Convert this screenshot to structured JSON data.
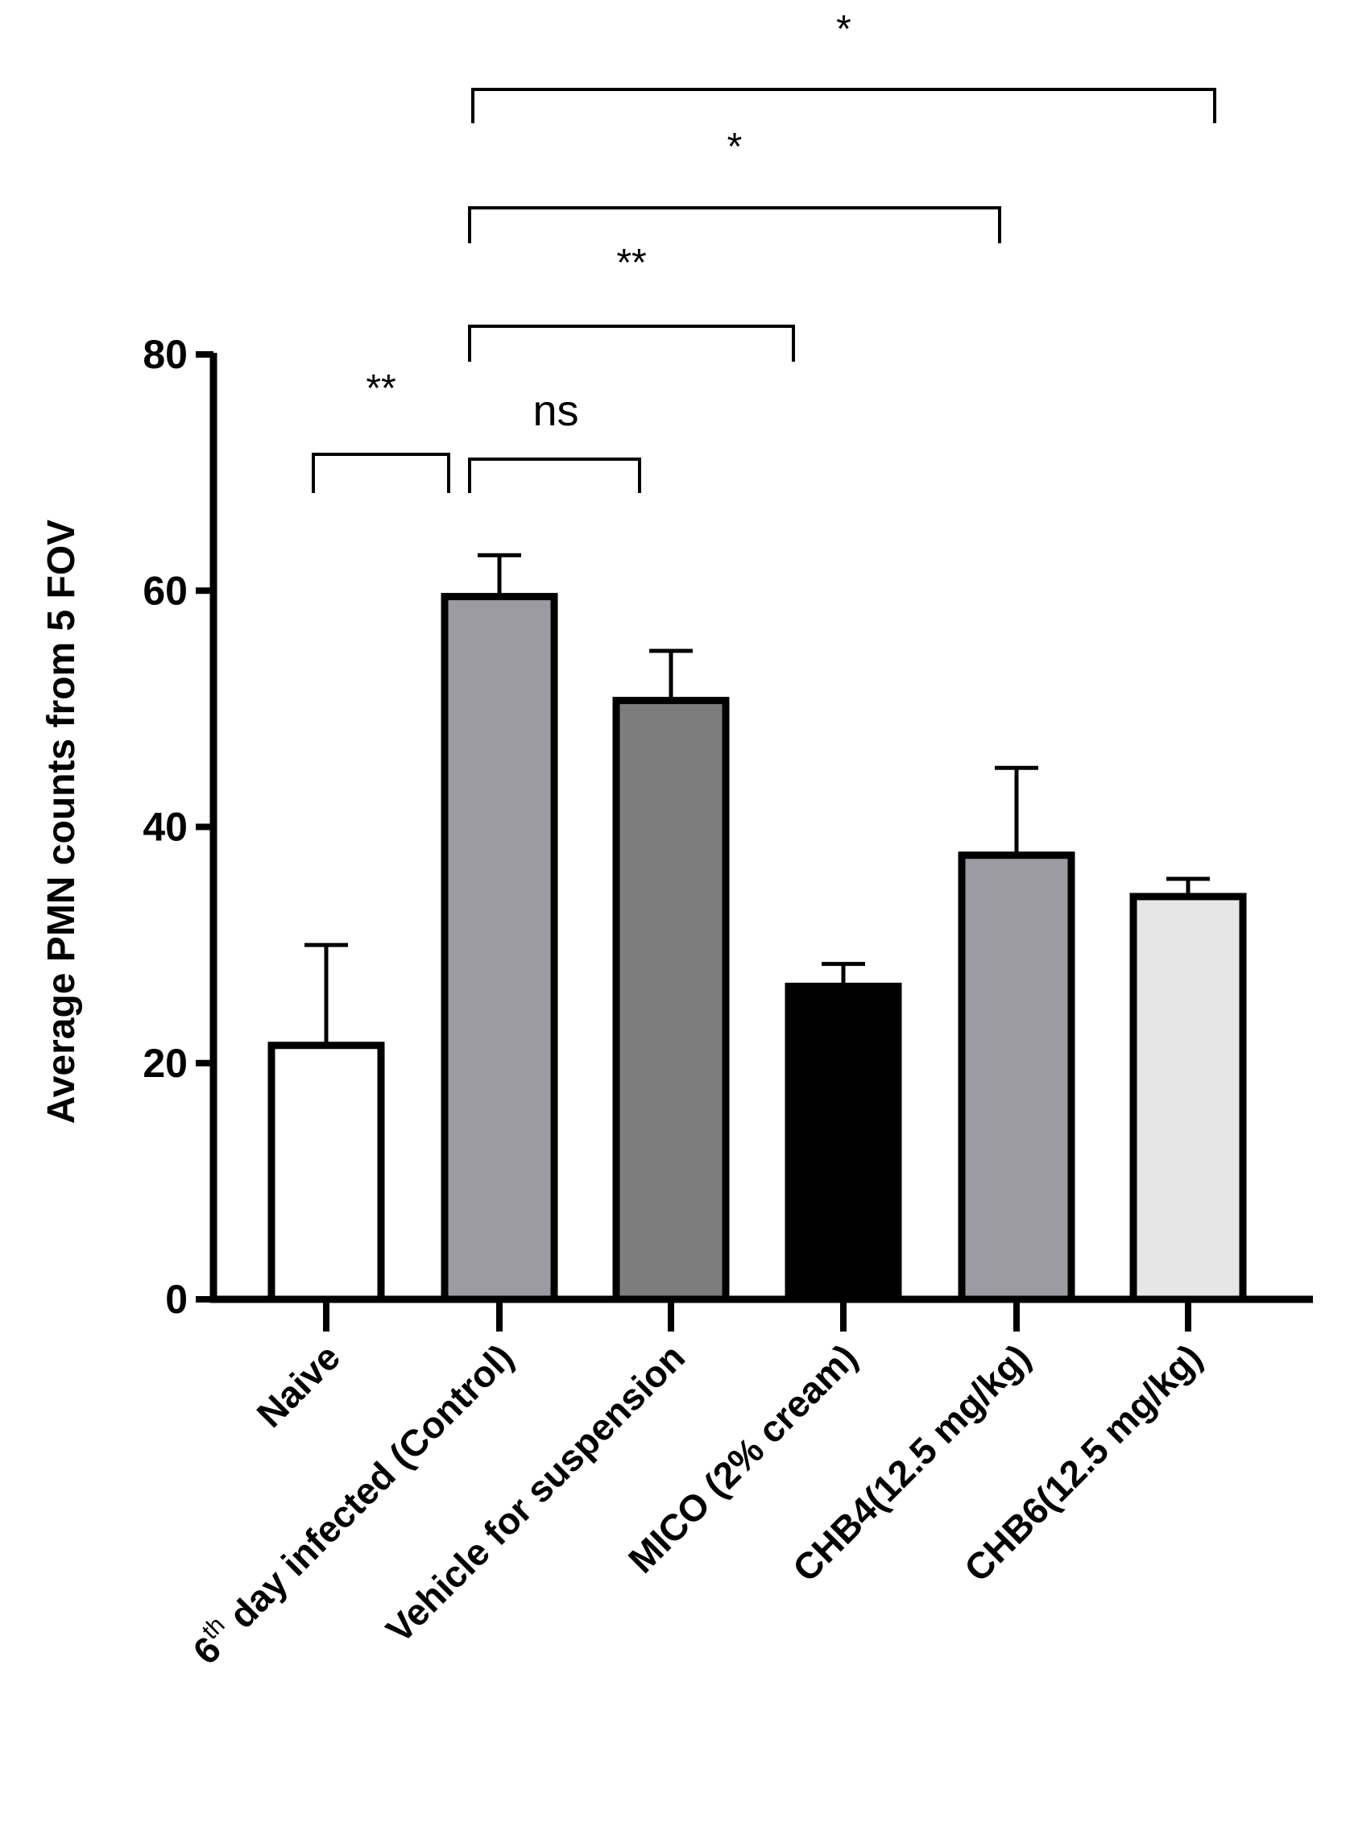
{
  "chart_data": {
    "type": "bar",
    "title": "",
    "xlabel": "",
    "ylabel": "Average PMN counts from  5 FOV",
    "ylim": [
      0,
      80
    ],
    "yticks": [
      "0",
      "20",
      "40",
      "60",
      "80"
    ],
    "grid": false,
    "categories": [
      {
        "label": "Naive",
        "superscript": "",
        "suffix": ""
      },
      {
        "label": "6",
        "superscript": "th",
        "suffix": " day infected (Control)"
      },
      {
        "label": "Vehicle for suspension",
        "superscript": "",
        "suffix": ""
      },
      {
        "label": "MICO (2% cream)",
        "superscript": "",
        "suffix": ""
      },
      {
        "label": "CHB4(12.5 mg/kg)",
        "superscript": "",
        "suffix": ""
      },
      {
        "label": "CHB6(12.5 mg/kg)",
        "superscript": "",
        "suffix": ""
      }
    ],
    "values": [
      21.5,
      59.5,
      50.7,
      26.5,
      37.6,
      34.1
    ],
    "errors": [
      8.5,
      3.5,
      4.2,
      1.9,
      7.4,
      1.5
    ],
    "fill_colors": [
      "#ffffff",
      "#9b9ba1",
      "#7d7d7d",
      "#000000",
      "#9b9ba1",
      "#e6e6e6"
    ],
    "significance": [
      {
        "from": 0,
        "to": 1,
        "label": "**"
      },
      {
        "from": 1,
        "to": 2,
        "label": "ns"
      },
      {
        "from": 1,
        "to": 3,
        "label": "**"
      },
      {
        "from": 1,
        "to": 4,
        "label": "*"
      },
      {
        "from": 1,
        "to": 5,
        "label": "*"
      }
    ]
  }
}
